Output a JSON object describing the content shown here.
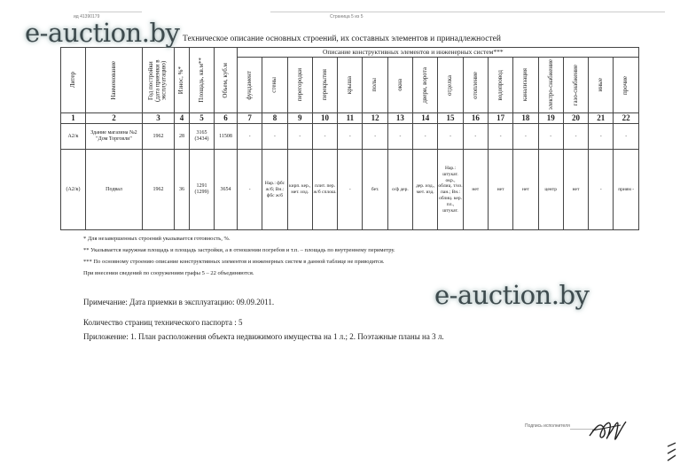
{
  "header": {
    "doc_id": "ид 41390179",
    "page": "Страница 5 из 5"
  },
  "watermark": "e-auction.by",
  "title": "Техническое описание основных строений, их составных элементов и принадлежностей",
  "table": {
    "group_header": "Описание конструктивных элементов и инженерных систем***",
    "columns": [
      "Литер",
      "Наименование",
      "Год постройки (дата приемки в эксплуатацию)",
      "Износ, %*",
      "Площадь, кв.м**",
      "Объем, куб.м",
      "фундамент",
      "стены",
      "перегородки",
      "перекрытия",
      "крыша",
      "полы",
      "окна",
      "двери, ворота",
      "отделка",
      "отопление",
      "водопровод",
      "канализация",
      "электро-снабжение",
      "газо-снабжение",
      "иные",
      "прочие"
    ],
    "numbers": [
      "1",
      "2",
      "3",
      "4",
      "5",
      "6",
      "7",
      "8",
      "9",
      "10",
      "11",
      "12",
      "13",
      "14",
      "15",
      "16",
      "17",
      "18",
      "19",
      "20",
      "21",
      "22"
    ],
    "rows": [
      [
        "А2/к",
        "Здание магазина №2 \"Дом Торговли\"",
        "1962",
        "28",
        "3165 (3434)",
        "11508",
        "-",
        "-",
        "-",
        "-",
        "-",
        "-",
        "-",
        "-",
        "-",
        "-",
        "-",
        "-",
        "-",
        "-",
        "-",
        "-"
      ],
      [
        "(А2/к)",
        "Подвал",
        "1962",
        "36",
        "1291 (1299)",
        "3654",
        "-",
        "Нар.: фбс ж/б; Вн.: фбс ж/б",
        "кирп. кер., мет. изд.",
        "плит. пер. ж/б сплош.",
        "-",
        "бет.",
        "о/ф дер.",
        "дер. изд., мет. изд.",
        "Нар.: штукат. окр., облиц. т/из. пан.; Вн.: облиц. кер. пл., штукат.",
        "нет",
        "нет",
        "нет",
        "центр",
        "нет",
        "-",
        "приям -"
      ]
    ]
  },
  "footnotes": [
    "* Для незавершенных строений указывается готовность, %.",
    "** Указывается наружная площадь и площадь застройки, а в отношении погребов и т.п. – площадь по внутреннему периметру.",
    "*** По основному строению описание конструктивных элементов и инженерных систем в данной таблице не приводится.",
    "При внесении сведений по сооружениям графы 5 – 22 объединяются."
  ],
  "note": "Примечание: Дата приемки в эксплуатацию: 09.09.2011.",
  "pages_count": "Количество страниц технического паспорта : 5",
  "appendix": "Приложение: 1. План расположения объекта недвижимого имущества на 1 л.; 2. Поэтажные планы на 3 л.",
  "signature_label": "Подпись исполнителя"
}
